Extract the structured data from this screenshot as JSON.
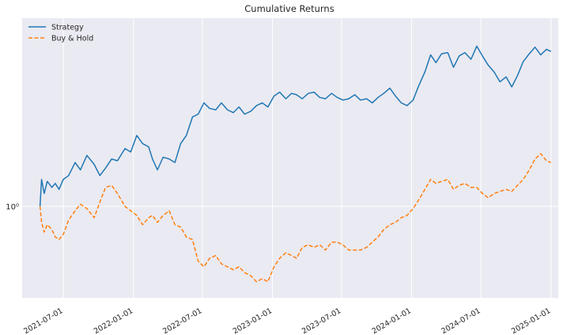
{
  "chart_data": {
    "type": "line",
    "title": "Cumulative Returns",
    "y_scale": "log",
    "ylim": [
      0.66,
      2.35
    ],
    "xlim": [
      "2021-03-15",
      "2025-01-20"
    ],
    "grid": true,
    "legend_position": "top-left",
    "background": "#eaeaf2",
    "x_ticks": [
      "2021-07-01",
      "2022-01-01",
      "2022-07-01",
      "2023-01-01",
      "2023-07-01",
      "2024-01-01",
      "2024-07-01",
      "2025-01-01"
    ],
    "y_ticks": [
      {
        "value": 1,
        "label": "10⁰"
      }
    ],
    "series": [
      {
        "name": "Strategy",
        "color": "#1f77b4",
        "style": "solid",
        "points": [
          [
            "2021-05-01",
            1.0
          ],
          [
            "2021-05-05",
            1.13
          ],
          [
            "2021-05-12",
            1.06
          ],
          [
            "2021-05-20",
            1.12
          ],
          [
            "2021-06-01",
            1.09
          ],
          [
            "2021-06-10",
            1.11
          ],
          [
            "2021-06-20",
            1.08
          ],
          [
            "2021-07-01",
            1.13
          ],
          [
            "2021-07-15",
            1.15
          ],
          [
            "2021-08-01",
            1.22
          ],
          [
            "2021-08-15",
            1.18
          ],
          [
            "2021-09-01",
            1.26
          ],
          [
            "2021-09-20",
            1.21
          ],
          [
            "2021-10-05",
            1.15
          ],
          [
            "2021-10-20",
            1.19
          ],
          [
            "2021-11-05",
            1.24
          ],
          [
            "2021-11-20",
            1.23
          ],
          [
            "2021-12-10",
            1.3
          ],
          [
            "2021-12-25",
            1.28
          ],
          [
            "2022-01-10",
            1.38
          ],
          [
            "2022-01-25",
            1.33
          ],
          [
            "2022-02-10",
            1.31
          ],
          [
            "2022-02-20",
            1.24
          ],
          [
            "2022-03-05",
            1.18
          ],
          [
            "2022-03-20",
            1.25
          ],
          [
            "2022-04-05",
            1.24
          ],
          [
            "2022-04-20",
            1.22
          ],
          [
            "2022-05-05",
            1.33
          ],
          [
            "2022-05-20",
            1.38
          ],
          [
            "2022-06-05",
            1.5
          ],
          [
            "2022-06-20",
            1.52
          ],
          [
            "2022-07-05",
            1.6
          ],
          [
            "2022-07-20",
            1.56
          ],
          [
            "2022-08-05",
            1.55
          ],
          [
            "2022-08-20",
            1.6
          ],
          [
            "2022-09-05",
            1.55
          ],
          [
            "2022-09-20",
            1.53
          ],
          [
            "2022-10-05",
            1.57
          ],
          [
            "2022-10-20",
            1.52
          ],
          [
            "2022-11-05",
            1.54
          ],
          [
            "2022-11-20",
            1.58
          ],
          [
            "2022-12-05",
            1.6
          ],
          [
            "2022-12-20",
            1.57
          ],
          [
            "2023-01-05",
            1.65
          ],
          [
            "2023-01-20",
            1.68
          ],
          [
            "2023-02-05",
            1.63
          ],
          [
            "2023-02-20",
            1.67
          ],
          [
            "2023-03-05",
            1.66
          ],
          [
            "2023-03-20",
            1.63
          ],
          [
            "2023-04-05",
            1.67
          ],
          [
            "2023-04-20",
            1.68
          ],
          [
            "2023-05-05",
            1.64
          ],
          [
            "2023-05-20",
            1.63
          ],
          [
            "2023-06-05",
            1.67
          ],
          [
            "2023-06-20",
            1.64
          ],
          [
            "2023-07-05",
            1.62
          ],
          [
            "2023-07-20",
            1.63
          ],
          [
            "2023-08-05",
            1.66
          ],
          [
            "2023-08-20",
            1.62
          ],
          [
            "2023-09-05",
            1.63
          ],
          [
            "2023-09-20",
            1.6
          ],
          [
            "2023-10-05",
            1.64
          ],
          [
            "2023-10-20",
            1.67
          ],
          [
            "2023-11-05",
            1.71
          ],
          [
            "2023-11-20",
            1.65
          ],
          [
            "2023-12-05",
            1.6
          ],
          [
            "2023-12-20",
            1.58
          ],
          [
            "2024-01-05",
            1.62
          ],
          [
            "2024-01-20",
            1.73
          ],
          [
            "2024-02-05",
            1.84
          ],
          [
            "2024-02-20",
            1.99
          ],
          [
            "2024-03-05",
            1.92
          ],
          [
            "2024-03-20",
            2.0
          ],
          [
            "2024-04-05",
            2.01
          ],
          [
            "2024-04-20",
            1.88
          ],
          [
            "2024-05-05",
            1.98
          ],
          [
            "2024-05-20",
            2.01
          ],
          [
            "2024-06-05",
            1.95
          ],
          [
            "2024-06-20",
            2.07
          ],
          [
            "2024-07-05",
            1.98
          ],
          [
            "2024-07-20",
            1.9
          ],
          [
            "2024-08-05",
            1.84
          ],
          [
            "2024-08-20",
            1.76
          ],
          [
            "2024-09-05",
            1.8
          ],
          [
            "2024-09-20",
            1.72
          ],
          [
            "2024-10-05",
            1.81
          ],
          [
            "2024-10-20",
            1.93
          ],
          [
            "2024-11-05",
            2.0
          ],
          [
            "2024-11-20",
            2.06
          ],
          [
            "2024-12-05",
            1.99
          ],
          [
            "2024-12-20",
            2.04
          ],
          [
            "2025-01-01",
            2.02
          ]
        ]
      },
      {
        "name": "Buy & Hold",
        "color": "#ff7f0e",
        "style": "dashed",
        "points": [
          [
            "2021-05-01",
            1.0
          ],
          [
            "2021-05-05",
            0.93
          ],
          [
            "2021-05-12",
            0.89
          ],
          [
            "2021-05-20",
            0.92
          ],
          [
            "2021-06-01",
            0.9
          ],
          [
            "2021-06-10",
            0.87
          ],
          [
            "2021-06-20",
            0.86
          ],
          [
            "2021-07-01",
            0.88
          ],
          [
            "2021-07-15",
            0.94
          ],
          [
            "2021-08-01",
            0.98
          ],
          [
            "2021-08-15",
            1.01
          ],
          [
            "2021-09-01",
            0.99
          ],
          [
            "2021-09-20",
            0.95
          ],
          [
            "2021-10-05",
            1.02
          ],
          [
            "2021-10-20",
            1.09
          ],
          [
            "2021-11-05",
            1.1
          ],
          [
            "2021-11-20",
            1.06
          ],
          [
            "2021-12-10",
            1.0
          ],
          [
            "2021-12-25",
            0.98
          ],
          [
            "2022-01-10",
            0.96
          ],
          [
            "2022-01-25",
            0.92
          ],
          [
            "2022-02-10",
            0.95
          ],
          [
            "2022-02-20",
            0.96
          ],
          [
            "2022-03-05",
            0.93
          ],
          [
            "2022-03-20",
            0.96
          ],
          [
            "2022-04-05",
            0.98
          ],
          [
            "2022-04-20",
            0.92
          ],
          [
            "2022-05-05",
            0.91
          ],
          [
            "2022-05-20",
            0.87
          ],
          [
            "2022-06-05",
            0.86
          ],
          [
            "2022-06-20",
            0.78
          ],
          [
            "2022-07-05",
            0.76
          ],
          [
            "2022-07-20",
            0.79
          ],
          [
            "2022-08-05",
            0.8
          ],
          [
            "2022-08-20",
            0.77
          ],
          [
            "2022-09-05",
            0.76
          ],
          [
            "2022-09-20",
            0.75
          ],
          [
            "2022-10-05",
            0.76
          ],
          [
            "2022-10-20",
            0.74
          ],
          [
            "2022-11-05",
            0.73
          ],
          [
            "2022-11-20",
            0.71
          ],
          [
            "2022-12-05",
            0.72
          ],
          [
            "2022-12-20",
            0.71
          ],
          [
            "2023-01-05",
            0.76
          ],
          [
            "2023-01-20",
            0.79
          ],
          [
            "2023-02-05",
            0.81
          ],
          [
            "2023-02-20",
            0.8
          ],
          [
            "2023-03-05",
            0.79
          ],
          [
            "2023-03-20",
            0.83
          ],
          [
            "2023-04-05",
            0.84
          ],
          [
            "2023-04-20",
            0.83
          ],
          [
            "2023-05-05",
            0.84
          ],
          [
            "2023-05-20",
            0.82
          ],
          [
            "2023-06-05",
            0.85
          ],
          [
            "2023-06-20",
            0.85
          ],
          [
            "2023-07-05",
            0.84
          ],
          [
            "2023-07-20",
            0.82
          ],
          [
            "2023-08-05",
            0.82
          ],
          [
            "2023-08-20",
            0.82
          ],
          [
            "2023-09-05",
            0.83
          ],
          [
            "2023-09-20",
            0.85
          ],
          [
            "2023-10-05",
            0.87
          ],
          [
            "2023-10-20",
            0.9
          ],
          [
            "2023-11-05",
            0.92
          ],
          [
            "2023-11-20",
            0.93
          ],
          [
            "2023-12-05",
            0.95
          ],
          [
            "2023-12-20",
            0.96
          ],
          [
            "2024-01-05",
            0.99
          ],
          [
            "2024-01-20",
            1.03
          ],
          [
            "2024-02-05",
            1.08
          ],
          [
            "2024-02-20",
            1.13
          ],
          [
            "2024-03-05",
            1.11
          ],
          [
            "2024-03-20",
            1.12
          ],
          [
            "2024-04-05",
            1.13
          ],
          [
            "2024-04-20",
            1.08
          ],
          [
            "2024-05-05",
            1.1
          ],
          [
            "2024-05-20",
            1.11
          ],
          [
            "2024-06-05",
            1.09
          ],
          [
            "2024-06-20",
            1.09
          ],
          [
            "2024-07-05",
            1.06
          ],
          [
            "2024-07-20",
            1.04
          ],
          [
            "2024-08-05",
            1.06
          ],
          [
            "2024-08-20",
            1.07
          ],
          [
            "2024-09-05",
            1.08
          ],
          [
            "2024-09-20",
            1.07
          ],
          [
            "2024-10-05",
            1.1
          ],
          [
            "2024-10-20",
            1.13
          ],
          [
            "2024-11-05",
            1.18
          ],
          [
            "2024-11-20",
            1.24
          ],
          [
            "2024-12-05",
            1.27
          ],
          [
            "2024-12-20",
            1.23
          ],
          [
            "2025-01-01",
            1.22
          ]
        ]
      }
    ]
  }
}
